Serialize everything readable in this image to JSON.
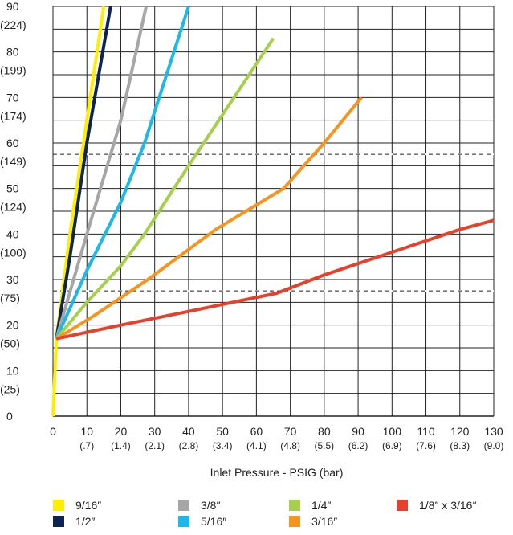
{
  "chart_data": {
    "type": "line",
    "xlabel": "Inlet Pressure - PSIG (bar)",
    "ylabel": "",
    "xlim": [
      0,
      130
    ],
    "ylim": [
      0,
      90
    ],
    "x_ticks": [
      {
        "value": 0,
        "label": "0",
        "sub": ""
      },
      {
        "value": 10,
        "label": "10",
        "sub": "(.7)"
      },
      {
        "value": 20,
        "label": "20",
        "sub": "(1.4)"
      },
      {
        "value": 30,
        "label": "30",
        "sub": "(2.1)"
      },
      {
        "value": 40,
        "label": "40",
        "sub": "(2.8)"
      },
      {
        "value": 50,
        "label": "50",
        "sub": "(3.4)"
      },
      {
        "value": 60,
        "label": "60",
        "sub": "(4.1)"
      },
      {
        "value": 70,
        "label": "70",
        "sub": "(4.8)"
      },
      {
        "value": 80,
        "label": "80",
        "sub": "(5.5)"
      },
      {
        "value": 90,
        "label": "90",
        "sub": "(6.2)"
      },
      {
        "value": 100,
        "label": "100",
        "sub": "(6.9)"
      },
      {
        "value": 110,
        "label": "110",
        "sub": "(7.6)"
      },
      {
        "value": 120,
        "label": "120",
        "sub": "(8.3)"
      },
      {
        "value": 130,
        "label": "130",
        "sub": "(9.0)"
      }
    ],
    "y_ticks": [
      {
        "value": 0,
        "label": "0",
        "sub": ""
      },
      {
        "value": 10,
        "label": "10",
        "sub": "(25)"
      },
      {
        "value": 20,
        "label": "20",
        "sub": "(50)"
      },
      {
        "value": 30,
        "label": "30",
        "sub": "(75)"
      },
      {
        "value": 40,
        "label": "40",
        "sub": "(100)"
      },
      {
        "value": 50,
        "label": "50",
        "sub": "(124)"
      },
      {
        "value": 60,
        "label": "60",
        "sub": "(149)"
      },
      {
        "value": 70,
        "label": "70",
        "sub": "(174)"
      },
      {
        "value": 80,
        "label": "80",
        "sub": "(199)"
      },
      {
        "value": 90,
        "label": "90",
        "sub": "(224)"
      }
    ],
    "dashed_lines_y": [
      27.5,
      57.5
    ],
    "grid": true,
    "legend_position": "bottom",
    "series": [
      {
        "name": "9/16″",
        "color": "#ffee00",
        "points": [
          [
            0,
            0
          ],
          [
            1,
            17
          ],
          [
            5,
            40
          ],
          [
            10,
            65
          ],
          [
            15,
            90
          ]
        ]
      },
      {
        "name": "1/2″",
        "color": "#0d2453",
        "points": [
          [
            1,
            17
          ],
          [
            5,
            35
          ],
          [
            10,
            60
          ],
          [
            17,
            90
          ]
        ]
      },
      {
        "name": "3/8″",
        "color": "#a6a6a6",
        "points": [
          [
            1,
            17
          ],
          [
            10,
            40
          ],
          [
            20,
            65
          ],
          [
            27.5,
            90
          ]
        ]
      },
      {
        "name": "5/16″",
        "color": "#1cb8e8",
        "points": [
          [
            1,
            17
          ],
          [
            10,
            32
          ],
          [
            20,
            47
          ],
          [
            27,
            60
          ],
          [
            40,
            90
          ]
        ]
      },
      {
        "name": "1/4″",
        "color": "#a6cf4c",
        "points": [
          [
            1,
            17
          ],
          [
            10,
            25
          ],
          [
            20,
            33
          ],
          [
            27,
            40
          ],
          [
            40,
            55
          ],
          [
            65,
            83
          ]
        ]
      },
      {
        "name": "3/16″",
        "color": "#f7941d",
        "points": [
          [
            1,
            17
          ],
          [
            12,
            22
          ],
          [
            28,
            30
          ],
          [
            48,
            41
          ],
          [
            68,
            50
          ],
          [
            80,
            60
          ],
          [
            91,
            70
          ]
        ]
      },
      {
        "name": "1/8″ x 3/16″",
        "color": "#e8412b",
        "points": [
          [
            1,
            17
          ],
          [
            20,
            20
          ],
          [
            40,
            23
          ],
          [
            66,
            27
          ],
          [
            80,
            31
          ],
          [
            100,
            36
          ],
          [
            120,
            41
          ],
          [
            130,
            43
          ]
        ]
      }
    ]
  },
  "legend": [
    {
      "label": "9/16″",
      "color": "#ffee00"
    },
    {
      "label": "1/2″",
      "color": "#0d2453"
    },
    {
      "label": "3/8″",
      "color": "#a6a6a6"
    },
    {
      "label": "5/16″",
      "color": "#1cb8e8"
    },
    {
      "label": "1/4″",
      "color": "#a6cf4c"
    },
    {
      "label": "3/16″",
      "color": "#f7941d"
    },
    {
      "label": "1/8″ x 3/16″",
      "color": "#e8412b"
    }
  ]
}
